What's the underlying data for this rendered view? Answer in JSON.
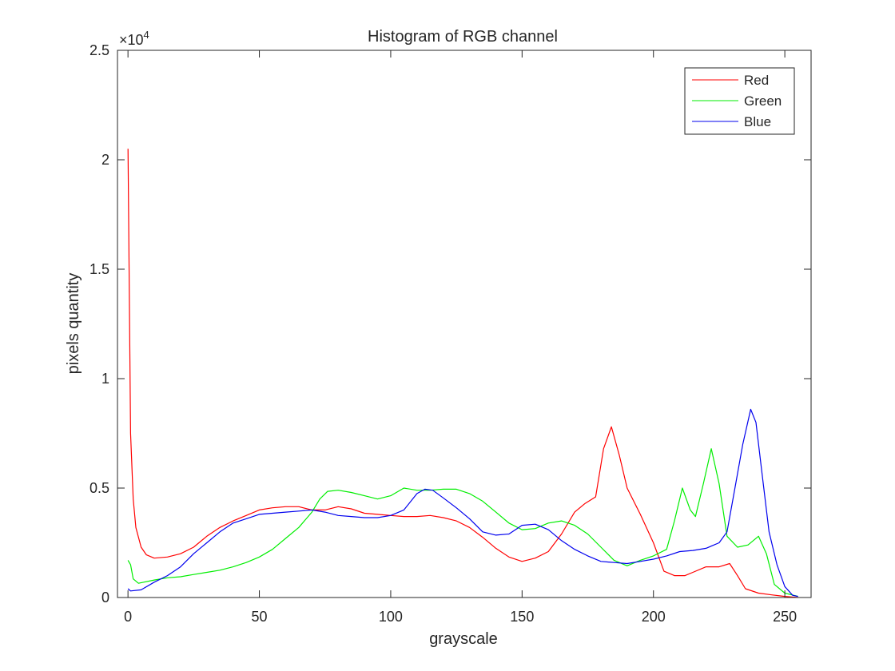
{
  "chart_data": {
    "type": "line",
    "title": "Histogram of RGB channel",
    "xlabel": "grayscale",
    "ylabel": "pixels quantity",
    "xlim": [
      -4,
      260
    ],
    "ylim": [
      0,
      25000
    ],
    "y_exponent_label": "×10",
    "y_exponent_power": "4",
    "xticks": [
      0,
      50,
      100,
      150,
      200,
      250
    ],
    "xtick_labels": [
      "0",
      "50",
      "100",
      "150",
      "200",
      "250"
    ],
    "yticks": [
      0,
      5000,
      10000,
      15000,
      20000,
      25000
    ],
    "ytick_labels": [
      "0",
      "0.5",
      "1",
      "1.5",
      "2",
      "2.5"
    ],
    "grid": false,
    "legend_position": "top-right",
    "series": [
      {
        "name": "Red",
        "color": "#ff0000",
        "points": [
          [
            0,
            20500
          ],
          [
            1,
            7500
          ],
          [
            2,
            4500
          ],
          [
            3,
            3200
          ],
          [
            5,
            2300
          ],
          [
            7,
            1950
          ],
          [
            10,
            1800
          ],
          [
            15,
            1850
          ],
          [
            20,
            2000
          ],
          [
            25,
            2300
          ],
          [
            30,
            2800
          ],
          [
            35,
            3200
          ],
          [
            40,
            3500
          ],
          [
            45,
            3750
          ],
          [
            50,
            4000
          ],
          [
            55,
            4100
          ],
          [
            60,
            4150
          ],
          [
            65,
            4150
          ],
          [
            70,
            4000
          ],
          [
            75,
            4000
          ],
          [
            80,
            4150
          ],
          [
            85,
            4050
          ],
          [
            90,
            3850
          ],
          [
            95,
            3800
          ],
          [
            100,
            3750
          ],
          [
            105,
            3700
          ],
          [
            110,
            3700
          ],
          [
            115,
            3750
          ],
          [
            120,
            3650
          ],
          [
            125,
            3500
          ],
          [
            130,
            3200
          ],
          [
            135,
            2750
          ],
          [
            140,
            2250
          ],
          [
            145,
            1850
          ],
          [
            150,
            1650
          ],
          [
            155,
            1800
          ],
          [
            160,
            2100
          ],
          [
            165,
            2900
          ],
          [
            170,
            3900
          ],
          [
            174,
            4300
          ],
          [
            178,
            4600
          ],
          [
            181,
            6800
          ],
          [
            184,
            7800
          ],
          [
            187,
            6500
          ],
          [
            190,
            5000
          ],
          [
            195,
            3800
          ],
          [
            200,
            2500
          ],
          [
            204,
            1200
          ],
          [
            208,
            1000
          ],
          [
            212,
            1000
          ],
          [
            215,
            1150
          ],
          [
            220,
            1400
          ],
          [
            225,
            1400
          ],
          [
            229,
            1550
          ],
          [
            232,
            1000
          ],
          [
            235,
            400
          ],
          [
            240,
            200
          ],
          [
            245,
            120
          ],
          [
            250,
            50
          ],
          [
            255,
            0
          ]
        ]
      },
      {
        "name": "Green",
        "color": "#00ee00",
        "points": [
          [
            0,
            1700
          ],
          [
            1,
            1500
          ],
          [
            2,
            850
          ],
          [
            4,
            650
          ],
          [
            6,
            700
          ],
          [
            10,
            800
          ],
          [
            15,
            900
          ],
          [
            20,
            950
          ],
          [
            25,
            1050
          ],
          [
            30,
            1150
          ],
          [
            35,
            1250
          ],
          [
            40,
            1400
          ],
          [
            45,
            1600
          ],
          [
            50,
            1850
          ],
          [
            55,
            2200
          ],
          [
            60,
            2700
          ],
          [
            65,
            3200
          ],
          [
            70,
            3900
          ],
          [
            73,
            4500
          ],
          [
            76,
            4850
          ],
          [
            80,
            4900
          ],
          [
            85,
            4800
          ],
          [
            90,
            4650
          ],
          [
            95,
            4500
          ],
          [
            100,
            4650
          ],
          [
            105,
            5000
          ],
          [
            110,
            4900
          ],
          [
            115,
            4900
          ],
          [
            120,
            4950
          ],
          [
            125,
            4950
          ],
          [
            130,
            4750
          ],
          [
            135,
            4400
          ],
          [
            140,
            3900
          ],
          [
            145,
            3400
          ],
          [
            150,
            3100
          ],
          [
            155,
            3150
          ],
          [
            160,
            3400
          ],
          [
            165,
            3500
          ],
          [
            170,
            3300
          ],
          [
            175,
            2900
          ],
          [
            180,
            2300
          ],
          [
            185,
            1700
          ],
          [
            190,
            1450
          ],
          [
            195,
            1700
          ],
          [
            200,
            1900
          ],
          [
            205,
            2200
          ],
          [
            208,
            3500
          ],
          [
            211,
            5000
          ],
          [
            214,
            4000
          ],
          [
            216,
            3700
          ],
          [
            219,
            5200
          ],
          [
            222,
            6800
          ],
          [
            225,
            5200
          ],
          [
            228,
            2800
          ],
          [
            232,
            2300
          ],
          [
            236,
            2400
          ],
          [
            240,
            2800
          ],
          [
            243,
            2000
          ],
          [
            246,
            600
          ],
          [
            250,
            200
          ],
          [
            255,
            50
          ]
        ]
      },
      {
        "name": "Blue",
        "color": "#0000ee",
        "points": [
          [
            0,
            400
          ],
          [
            1,
            300
          ],
          [
            5,
            350
          ],
          [
            10,
            700
          ],
          [
            15,
            1000
          ],
          [
            20,
            1400
          ],
          [
            25,
            2000
          ],
          [
            30,
            2500
          ],
          [
            35,
            3000
          ],
          [
            40,
            3400
          ],
          [
            45,
            3600
          ],
          [
            50,
            3800
          ],
          [
            55,
            3850
          ],
          [
            60,
            3900
          ],
          [
            65,
            3950
          ],
          [
            70,
            4000
          ],
          [
            75,
            3900
          ],
          [
            80,
            3750
          ],
          [
            85,
            3700
          ],
          [
            90,
            3650
          ],
          [
            95,
            3650
          ],
          [
            100,
            3750
          ],
          [
            105,
            4000
          ],
          [
            110,
            4750
          ],
          [
            113,
            4950
          ],
          [
            116,
            4900
          ],
          [
            120,
            4550
          ],
          [
            125,
            4100
          ],
          [
            130,
            3600
          ],
          [
            135,
            3000
          ],
          [
            140,
            2850
          ],
          [
            145,
            2900
          ],
          [
            150,
            3300
          ],
          [
            155,
            3350
          ],
          [
            160,
            3100
          ],
          [
            165,
            2600
          ],
          [
            170,
            2200
          ],
          [
            175,
            1900
          ],
          [
            180,
            1650
          ],
          [
            185,
            1600
          ],
          [
            190,
            1550
          ],
          [
            195,
            1650
          ],
          [
            200,
            1750
          ],
          [
            205,
            1900
          ],
          [
            210,
            2100
          ],
          [
            215,
            2150
          ],
          [
            220,
            2250
          ],
          [
            225,
            2500
          ],
          [
            228,
            3000
          ],
          [
            231,
            5000
          ],
          [
            234,
            7000
          ],
          [
            237,
            8600
          ],
          [
            239,
            8000
          ],
          [
            241,
            6000
          ],
          [
            244,
            3000
          ],
          [
            247,
            1500
          ],
          [
            250,
            500
          ],
          [
            253,
            100
          ],
          [
            255,
            50
          ]
        ]
      }
    ]
  }
}
